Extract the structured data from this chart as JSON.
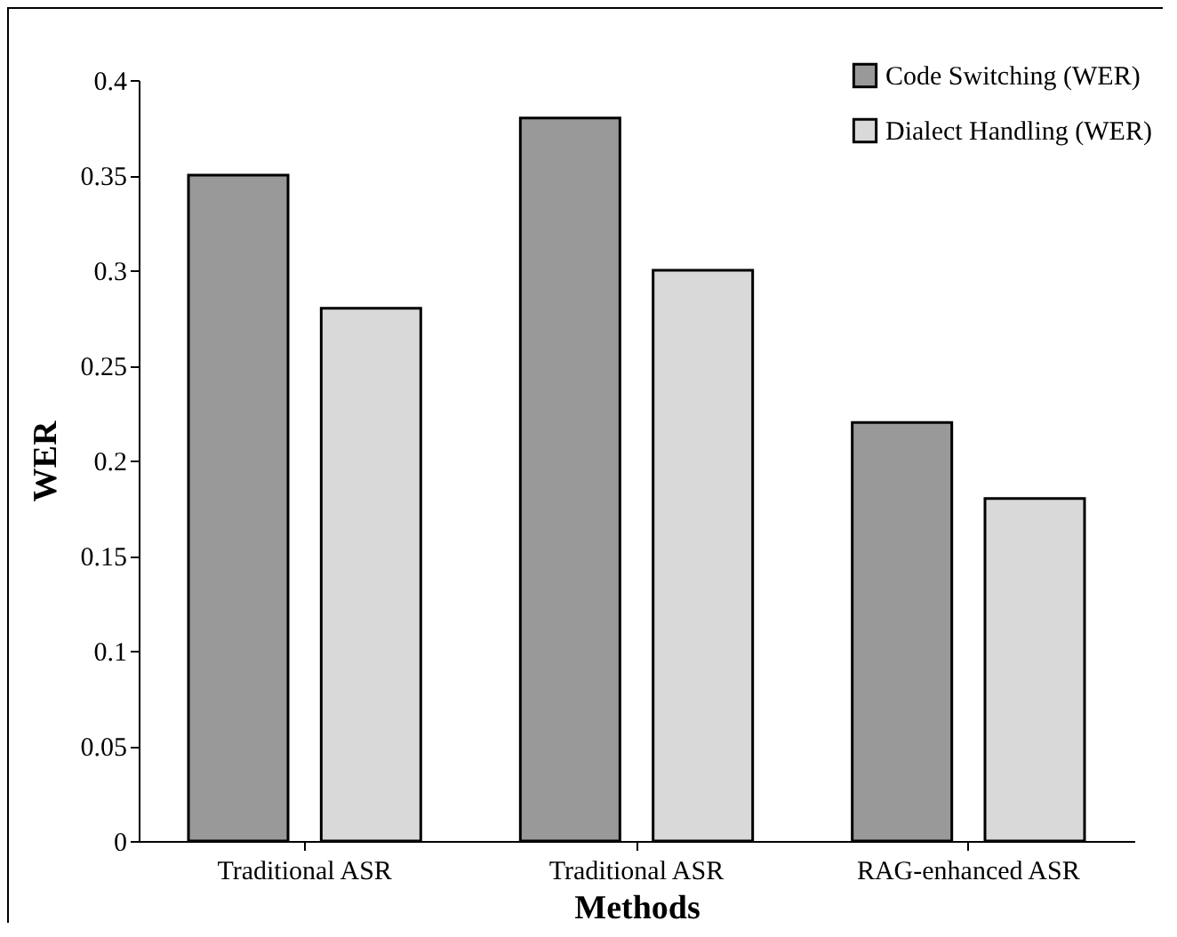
{
  "chart_data": {
    "type": "bar",
    "xlabel": "Methods",
    "ylabel": "WER",
    "categories": [
      "Traditional ASR",
      "Traditional ASR",
      "RAG-enhanced ASR"
    ],
    "series": [
      {
        "name": "Code Switching (WER)",
        "color": "#999999",
        "values": [
          0.35,
          0.38,
          0.22
        ]
      },
      {
        "name": "Dialect Handling (WER)",
        "color": "#d9d9d9",
        "values": [
          0.28,
          0.3,
          0.18
        ]
      }
    ],
    "ylim": [
      0,
      0.4
    ],
    "yticks": [
      0,
      0.05,
      0.1,
      0.15,
      0.2,
      0.25,
      0.3,
      0.35,
      0.4
    ],
    "grid": false,
    "legend": "top right"
  }
}
